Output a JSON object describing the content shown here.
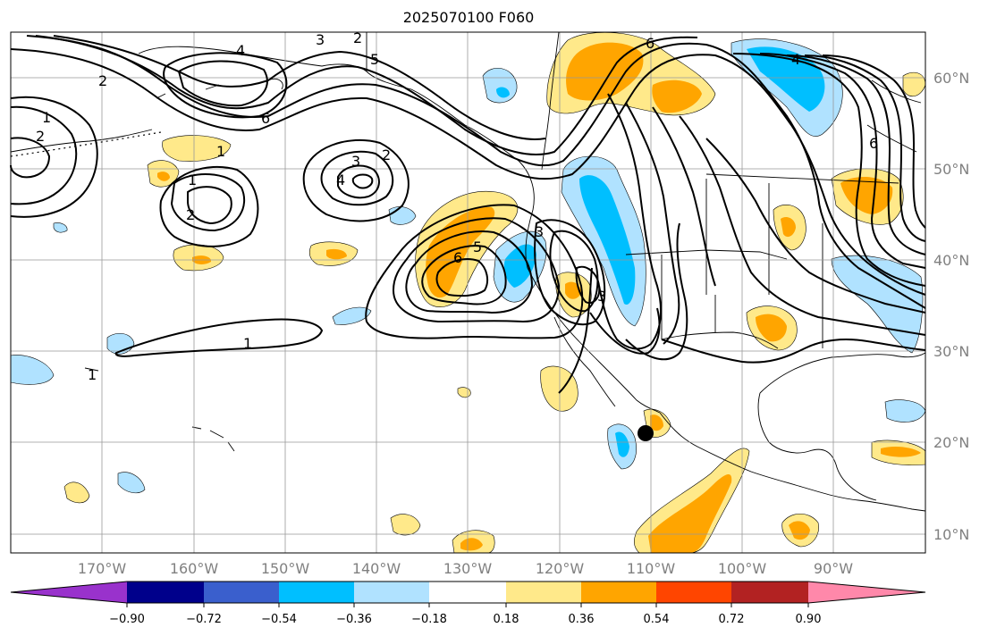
{
  "title": "2025070100 F060",
  "map": {
    "lat_labels": [
      "60°N",
      "50°N",
      "40°N",
      "30°N",
      "20°N",
      "10°N"
    ],
    "lon_labels": [
      "170°W",
      "160°W",
      "150°W",
      "140°W",
      "130°W",
      "120°W",
      "110°W",
      "100°W",
      "90°W"
    ],
    "contour_labels": [
      "4",
      "3",
      "2",
      "5",
      "6",
      "1",
      "2",
      "1",
      "1",
      "2",
      "3",
      "2",
      "4",
      "6",
      "5",
      "3",
      "3",
      "1",
      "1",
      "2",
      "6",
      "6",
      "4"
    ]
  },
  "colorbar": {
    "tick_labels": [
      "−0.90",
      "−0.72",
      "−0.54",
      "−0.36",
      "−0.18",
      "0.18",
      "0.36",
      "0.54",
      "0.72",
      "0.90"
    ],
    "colors": [
      "#9932cc",
      "#00008b",
      "#3a5fcd",
      "#00bfff",
      "#b0e2ff",
      "#ffffff",
      "#ffe98a",
      "#ffa500",
      "#ff4500",
      "#b22222",
      "#ff88aa"
    ]
  }
}
